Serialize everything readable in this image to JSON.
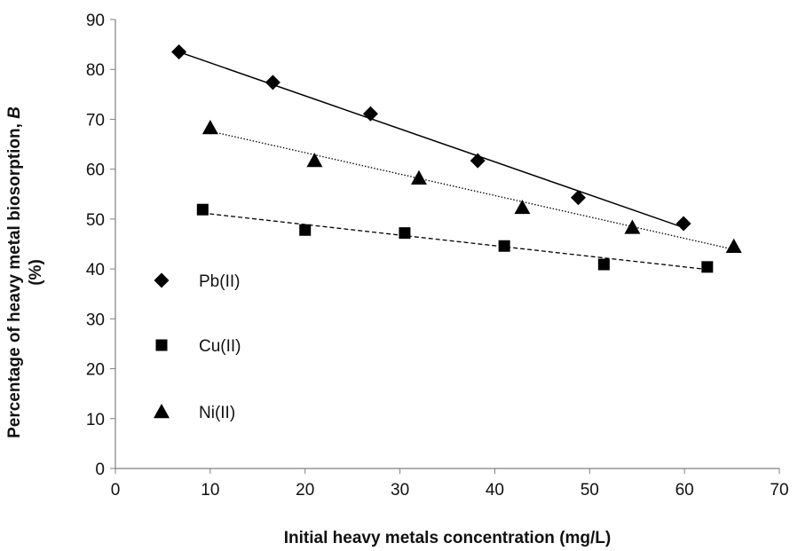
{
  "chart_data": {
    "type": "scatter",
    "title": "",
    "xlabel": "Initial heavy metals concentration (mg/L)",
    "ylabel": "Percentage of heavy metal biosorption, ",
    "ylabel_italic": "B",
    "ylabel_line2": "(%)",
    "xlim": [
      0,
      70
    ],
    "ylim": [
      0,
      90
    ],
    "xticks": [
      0,
      10,
      20,
      30,
      40,
      50,
      60,
      70
    ],
    "yticks": [
      0,
      10,
      20,
      30,
      40,
      50,
      60,
      70,
      80,
      90
    ],
    "grid": false,
    "legend_position": "left-inside",
    "series": [
      {
        "name": "Pb(II)",
        "marker": "diamond",
        "line_style": "solid",
        "x": [
          6.7,
          16.6,
          26.9,
          38.2,
          48.8,
          59.9
        ],
        "y": [
          83.5,
          77.4,
          71.1,
          61.7,
          54.3,
          49.1
        ],
        "trend": [
          [
            6.7,
            83.5
          ],
          [
            59.9,
            48.3
          ]
        ]
      },
      {
        "name": "Cu(II)",
        "marker": "square",
        "line_style": "dashed",
        "x": [
          9.2,
          20.0,
          30.5,
          41.0,
          51.5,
          62.4
        ],
        "y": [
          51.9,
          47.8,
          47.2,
          44.6,
          40.9,
          40.4
        ],
        "trend": [
          [
            9.2,
            51.2
          ],
          [
            62.4,
            39.9
          ]
        ]
      },
      {
        "name": "Ni(II)",
        "marker": "triangle",
        "line_style": "dotted",
        "x": [
          10.0,
          21.0,
          32.0,
          42.9,
          54.5,
          65.2
        ],
        "y": [
          68.3,
          61.7,
          58.2,
          52.3,
          48.3,
          44.5
        ],
        "trend": [
          [
            10.0,
            67.6
          ],
          [
            65.2,
            43.9
          ]
        ]
      }
    ]
  }
}
